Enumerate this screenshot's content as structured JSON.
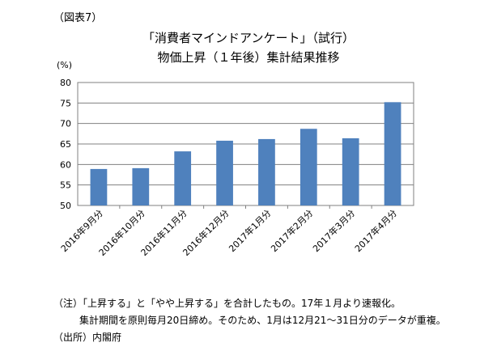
{
  "figure_label": "（図表7）",
  "chart_data": {
    "type": "bar",
    "title": "「消費者マインドアンケート」（試行）",
    "subtitle": "物価上昇（１年後）集計結果推移",
    "ylabel": "(%)",
    "xlabel": "",
    "categories": [
      "2016年9月分",
      "2016年10月分",
      "2016年11月分",
      "2016年12月分",
      "2017年1月分",
      "2017年2月分",
      "2017年3月分",
      "2017年4月分"
    ],
    "values": [
      58.9,
      59.1,
      63.2,
      65.8,
      66.2,
      68.7,
      66.4,
      75.2
    ],
    "ylim": [
      50,
      80
    ],
    "yticks": [
      50,
      55,
      60,
      65,
      70,
      75,
      80
    ],
    "grid": true,
    "legend": "none",
    "bar_color": "#4f81bd"
  },
  "notes": [
    "（注）「上昇する」と「やや上昇する」を合計したもの。17年１月より速報化。",
    "集計期間を原則毎月20日締め。そのため、1月は12月21～31日分のデータが重複。",
    "（出所）内閣府"
  ]
}
